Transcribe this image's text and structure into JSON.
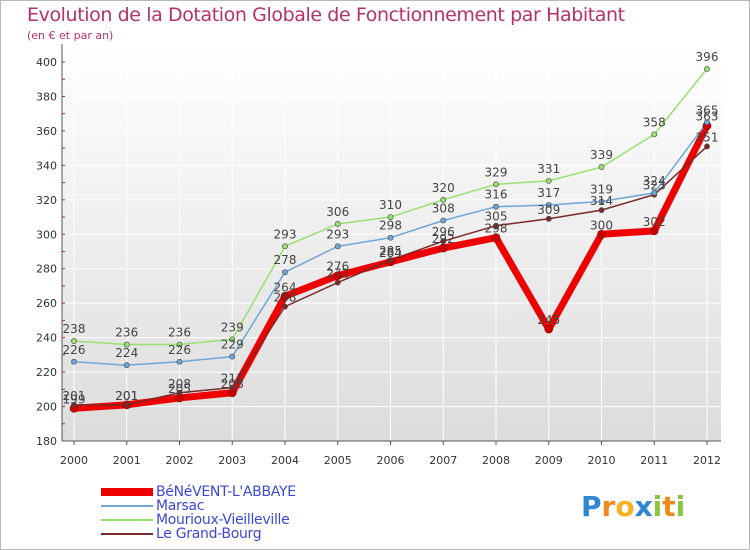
{
  "title": "Evolution de la Dotation Globale de Fonctionnement par Habitant",
  "subtitle": "(en € et par an)",
  "brand": {
    "text": "Proxiti",
    "letters": [
      "P",
      "r",
      "o",
      "x",
      "i",
      "t",
      "i"
    ],
    "colors": [
      "#2f86d4",
      "#f08a1c",
      "#f5b21f",
      "#2f86d4",
      "#8cc63f",
      "#f08a1c",
      "#8cc63f"
    ]
  },
  "chart_data": {
    "type": "line",
    "title": "Evolution de la Dotation Globale de Fonctionnement par Habitant",
    "subtitle": "(en € et par an)",
    "xlabel": "",
    "ylabel": "",
    "x": [
      "2000",
      "2001",
      "2002",
      "2003",
      "2004",
      "2005",
      "2006",
      "2007",
      "2008",
      "2009",
      "2010",
      "2011",
      "2012"
    ],
    "ylim": [
      180,
      400
    ],
    "yticks": [
      180,
      200,
      220,
      240,
      260,
      280,
      300,
      320,
      340,
      360,
      380,
      400
    ],
    "grid": true,
    "legend_position": "bottom-left",
    "series": [
      {
        "name": "BéNéVENT-L'ABBAYE",
        "color": "#ee0000",
        "width": 7,
        "values": [
          199,
          201,
          205,
          208,
          264,
          276,
          284,
          292,
          298,
          245,
          300,
          302,
          363
        ]
      },
      {
        "name": "Marsac",
        "color": "#6ea6d8",
        "width": 1.5,
        "values": [
          226,
          224,
          226,
          229,
          278,
          293,
          298,
          308,
          316,
          317,
          319,
          324,
          365
        ]
      },
      {
        "name": "Mourioux-Vieilleville",
        "color": "#98e070",
        "width": 1.5,
        "values": [
          238,
          236,
          236,
          239,
          293,
          306,
          310,
          320,
          329,
          331,
          339,
          358,
          396
        ]
      },
      {
        "name": "Le Grand-Bourg",
        "color": "#7a2a2a",
        "width": 1.5,
        "values": [
          201,
          201,
          208,
          211,
          258,
          272,
          285,
          296,
          305,
          309,
          314,
          323,
          351
        ]
      }
    ]
  }
}
